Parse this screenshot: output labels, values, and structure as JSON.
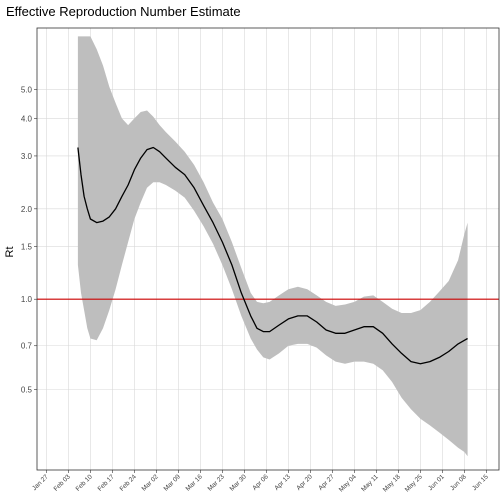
{
  "chart_data": {
    "type": "line",
    "title": "Effective Reproduction Number Estimate",
    "xlabel": "",
    "ylabel": "Rt",
    "y_scale": "log",
    "ylim": [
      0.27,
      8.0
    ],
    "xlim": [
      "2020-01-24",
      "2020-06-19"
    ],
    "grid": true,
    "legend": "none",
    "y_ticks": [
      {
        "value": 0.5,
        "label": "0.5"
      },
      {
        "value": 0.7,
        "label": "0.7"
      },
      {
        "value": 1.0,
        "label": "1.0"
      },
      {
        "value": 1.5,
        "label": "1.5"
      },
      {
        "value": 2.0,
        "label": "2.0"
      },
      {
        "value": 3.0,
        "label": "3.0"
      },
      {
        "value": 4.0,
        "label": "4.0"
      },
      {
        "value": 5.0,
        "label": "5.0"
      }
    ],
    "x_ticks": [
      {
        "date": "2020-01-27",
        "label": "Jan 27"
      },
      {
        "date": "2020-02-03",
        "label": "Feb 03"
      },
      {
        "date": "2020-02-10",
        "label": "Feb 10"
      },
      {
        "date": "2020-02-17",
        "label": "Feb 17"
      },
      {
        "date": "2020-02-24",
        "label": "Feb 24"
      },
      {
        "date": "2020-03-02",
        "label": "Mar 02"
      },
      {
        "date": "2020-03-09",
        "label": "Mar 09"
      },
      {
        "date": "2020-03-16",
        "label": "Mar 16"
      },
      {
        "date": "2020-03-23",
        "label": "Mar 23"
      },
      {
        "date": "2020-03-30",
        "label": "Mar 30"
      },
      {
        "date": "2020-04-06",
        "label": "Apr 06"
      },
      {
        "date": "2020-04-13",
        "label": "Apr 13"
      },
      {
        "date": "2020-04-20",
        "label": "Apr 20"
      },
      {
        "date": "2020-04-27",
        "label": "Apr 27"
      },
      {
        "date": "2020-05-04",
        "label": "May 04"
      },
      {
        "date": "2020-05-11",
        "label": "May 11"
      },
      {
        "date": "2020-05-18",
        "label": "May 18"
      },
      {
        "date": "2020-05-25",
        "label": "May 25"
      },
      {
        "date": "2020-06-01",
        "label": "Jun 01"
      },
      {
        "date": "2020-06-08",
        "label": "Jun 08"
      },
      {
        "date": "2020-06-15",
        "label": "Jun 15"
      }
    ],
    "reference_line": {
      "y": 1.0,
      "color": "#cc0000"
    },
    "colors": {
      "line": "#000000",
      "band": "#bebebe",
      "grid": "#d9d9d9",
      "panel_border": "#333333"
    },
    "series": [
      {
        "x": [
          "2020-02-06",
          "2020-02-07",
          "2020-02-08",
          "2020-02-09",
          "2020-02-10",
          "2020-02-12",
          "2020-02-14",
          "2020-02-16",
          "2020-02-18",
          "2020-02-20",
          "2020-02-22",
          "2020-02-24",
          "2020-02-26",
          "2020-02-28",
          "2020-03-01",
          "2020-03-03",
          "2020-03-05",
          "2020-03-08",
          "2020-03-11",
          "2020-03-14",
          "2020-03-17",
          "2020-03-20",
          "2020-03-23",
          "2020-03-26",
          "2020-03-29",
          "2020-04-01",
          "2020-04-03",
          "2020-04-05",
          "2020-04-07",
          "2020-04-10",
          "2020-04-13",
          "2020-04-16",
          "2020-04-19",
          "2020-04-22",
          "2020-04-25",
          "2020-04-28",
          "2020-05-01",
          "2020-05-04",
          "2020-05-07",
          "2020-05-10",
          "2020-05-13",
          "2020-05-16",
          "2020-05-19",
          "2020-05-22",
          "2020-05-25",
          "2020-05-28",
          "2020-05-31",
          "2020-06-03",
          "2020-06-06",
          "2020-06-08",
          "2020-06-09"
        ],
        "rt": [
          3.2,
          2.6,
          2.2,
          2.0,
          1.85,
          1.8,
          1.82,
          1.88,
          2.0,
          2.2,
          2.4,
          2.7,
          2.95,
          3.15,
          3.2,
          3.1,
          2.95,
          2.75,
          2.6,
          2.35,
          2.05,
          1.8,
          1.55,
          1.3,
          1.05,
          0.88,
          0.8,
          0.78,
          0.78,
          0.82,
          0.86,
          0.88,
          0.88,
          0.84,
          0.79,
          0.77,
          0.77,
          0.79,
          0.81,
          0.81,
          0.77,
          0.71,
          0.66,
          0.62,
          0.61,
          0.62,
          0.64,
          0.67,
          0.71,
          0.73,
          0.74
        ],
        "lower": [
          1.3,
          1.05,
          0.92,
          0.8,
          0.74,
          0.73,
          0.8,
          0.92,
          1.08,
          1.3,
          1.55,
          1.85,
          2.1,
          2.35,
          2.45,
          2.45,
          2.4,
          2.3,
          2.18,
          1.97,
          1.75,
          1.53,
          1.3,
          1.08,
          0.88,
          0.74,
          0.68,
          0.64,
          0.63,
          0.66,
          0.7,
          0.71,
          0.71,
          0.69,
          0.65,
          0.62,
          0.61,
          0.62,
          0.62,
          0.61,
          0.58,
          0.53,
          0.47,
          0.43,
          0.4,
          0.38,
          0.36,
          0.34,
          0.32,
          0.31,
          0.3
        ],
        "upper": [
          7.5,
          7.5,
          7.5,
          7.5,
          7.5,
          6.8,
          6.0,
          5.1,
          4.5,
          4.0,
          3.8,
          4.0,
          4.2,
          4.25,
          4.05,
          3.8,
          3.6,
          3.35,
          3.1,
          2.8,
          2.45,
          2.1,
          1.85,
          1.55,
          1.27,
          1.05,
          0.98,
          0.97,
          0.98,
          1.03,
          1.08,
          1.1,
          1.08,
          1.03,
          0.98,
          0.95,
          0.96,
          0.98,
          1.02,
          1.03,
          0.98,
          0.93,
          0.9,
          0.9,
          0.92,
          0.98,
          1.06,
          1.15,
          1.35,
          1.65,
          1.8
        ]
      }
    ]
  }
}
